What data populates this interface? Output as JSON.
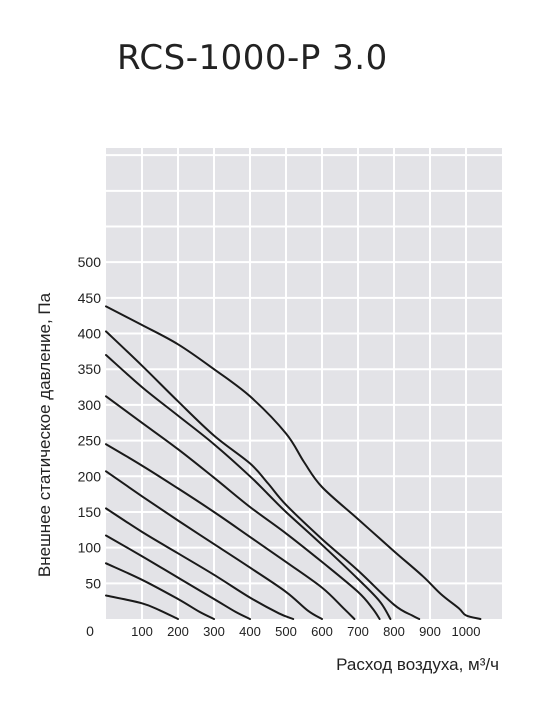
{
  "title": "RCS-1000-P 3.0",
  "chart_data": {
    "type": "line",
    "title": "RCS-1000-P 3.0",
    "xlabel": "Расход воздуха, м³/ч",
    "ylabel": "Внешнее статическое давление, Па",
    "xlim": [
      0,
      1100
    ],
    "ylim": [
      0,
      660
    ],
    "x_ticks": [
      100,
      200,
      300,
      400,
      500,
      600,
      700,
      800,
      900,
      1000
    ],
    "y_ticks": [
      50,
      100,
      150,
      200,
      250,
      300,
      350,
      400,
      450,
      500
    ],
    "origin_label": "0",
    "grid": true,
    "colors": {
      "background": "#e3e3e7",
      "grid": "#ffffff",
      "line": "#1a1a1a",
      "text": "#222222"
    },
    "series": [
      {
        "x": [
          0,
          100,
          150,
          200
        ],
        "y": [
          33,
          22,
          12,
          0
        ]
      },
      {
        "x": [
          0,
          100,
          200,
          260,
          300
        ],
        "y": [
          78,
          55,
          28,
          10,
          0
        ]
      },
      {
        "x": [
          0,
          100,
          200,
          300,
          360,
          400
        ],
        "y": [
          117,
          88,
          58,
          28,
          10,
          0
        ]
      },
      {
        "x": [
          0,
          100,
          200,
          300,
          400,
          480,
          520
        ],
        "y": [
          155,
          122,
          92,
          62,
          30,
          8,
          0
        ]
      },
      {
        "x": [
          0,
          100,
          200,
          300,
          400,
          500,
          560,
          600
        ],
        "y": [
          207,
          172,
          138,
          105,
          72,
          38,
          12,
          0
        ]
      },
      {
        "x": [
          0,
          100,
          200,
          300,
          400,
          500,
          600,
          660,
          690
        ],
        "y": [
          245,
          215,
          183,
          150,
          115,
          80,
          44,
          15,
          0
        ]
      },
      {
        "x": [
          0,
          100,
          200,
          300,
          400,
          500,
          600,
          700,
          740,
          760
        ],
        "y": [
          312,
          275,
          238,
          198,
          157,
          120,
          80,
          38,
          15,
          0
        ]
      },
      {
        "x": [
          0,
          100,
          200,
          300,
          400,
          450,
          500,
          600,
          700,
          760,
          790
        ],
        "y": [
          370,
          325,
          285,
          245,
          200,
          175,
          150,
          104,
          56,
          25,
          0
        ]
      },
      {
        "x": [
          0,
          100,
          200,
          300,
          400,
          450,
          500,
          600,
          700,
          800,
          850,
          870
        ],
        "y": [
          403,
          355,
          305,
          257,
          218,
          190,
          160,
          112,
          68,
          20,
          5,
          0
        ]
      },
      {
        "x": [
          0,
          100,
          200,
          300,
          400,
          500,
          550,
          600,
          700,
          800,
          880,
          930,
          980,
          1000,
          1040
        ],
        "y": [
          438,
          412,
          385,
          350,
          312,
          260,
          220,
          185,
          140,
          95,
          60,
          35,
          15,
          5,
          0
        ]
      }
    ]
  }
}
